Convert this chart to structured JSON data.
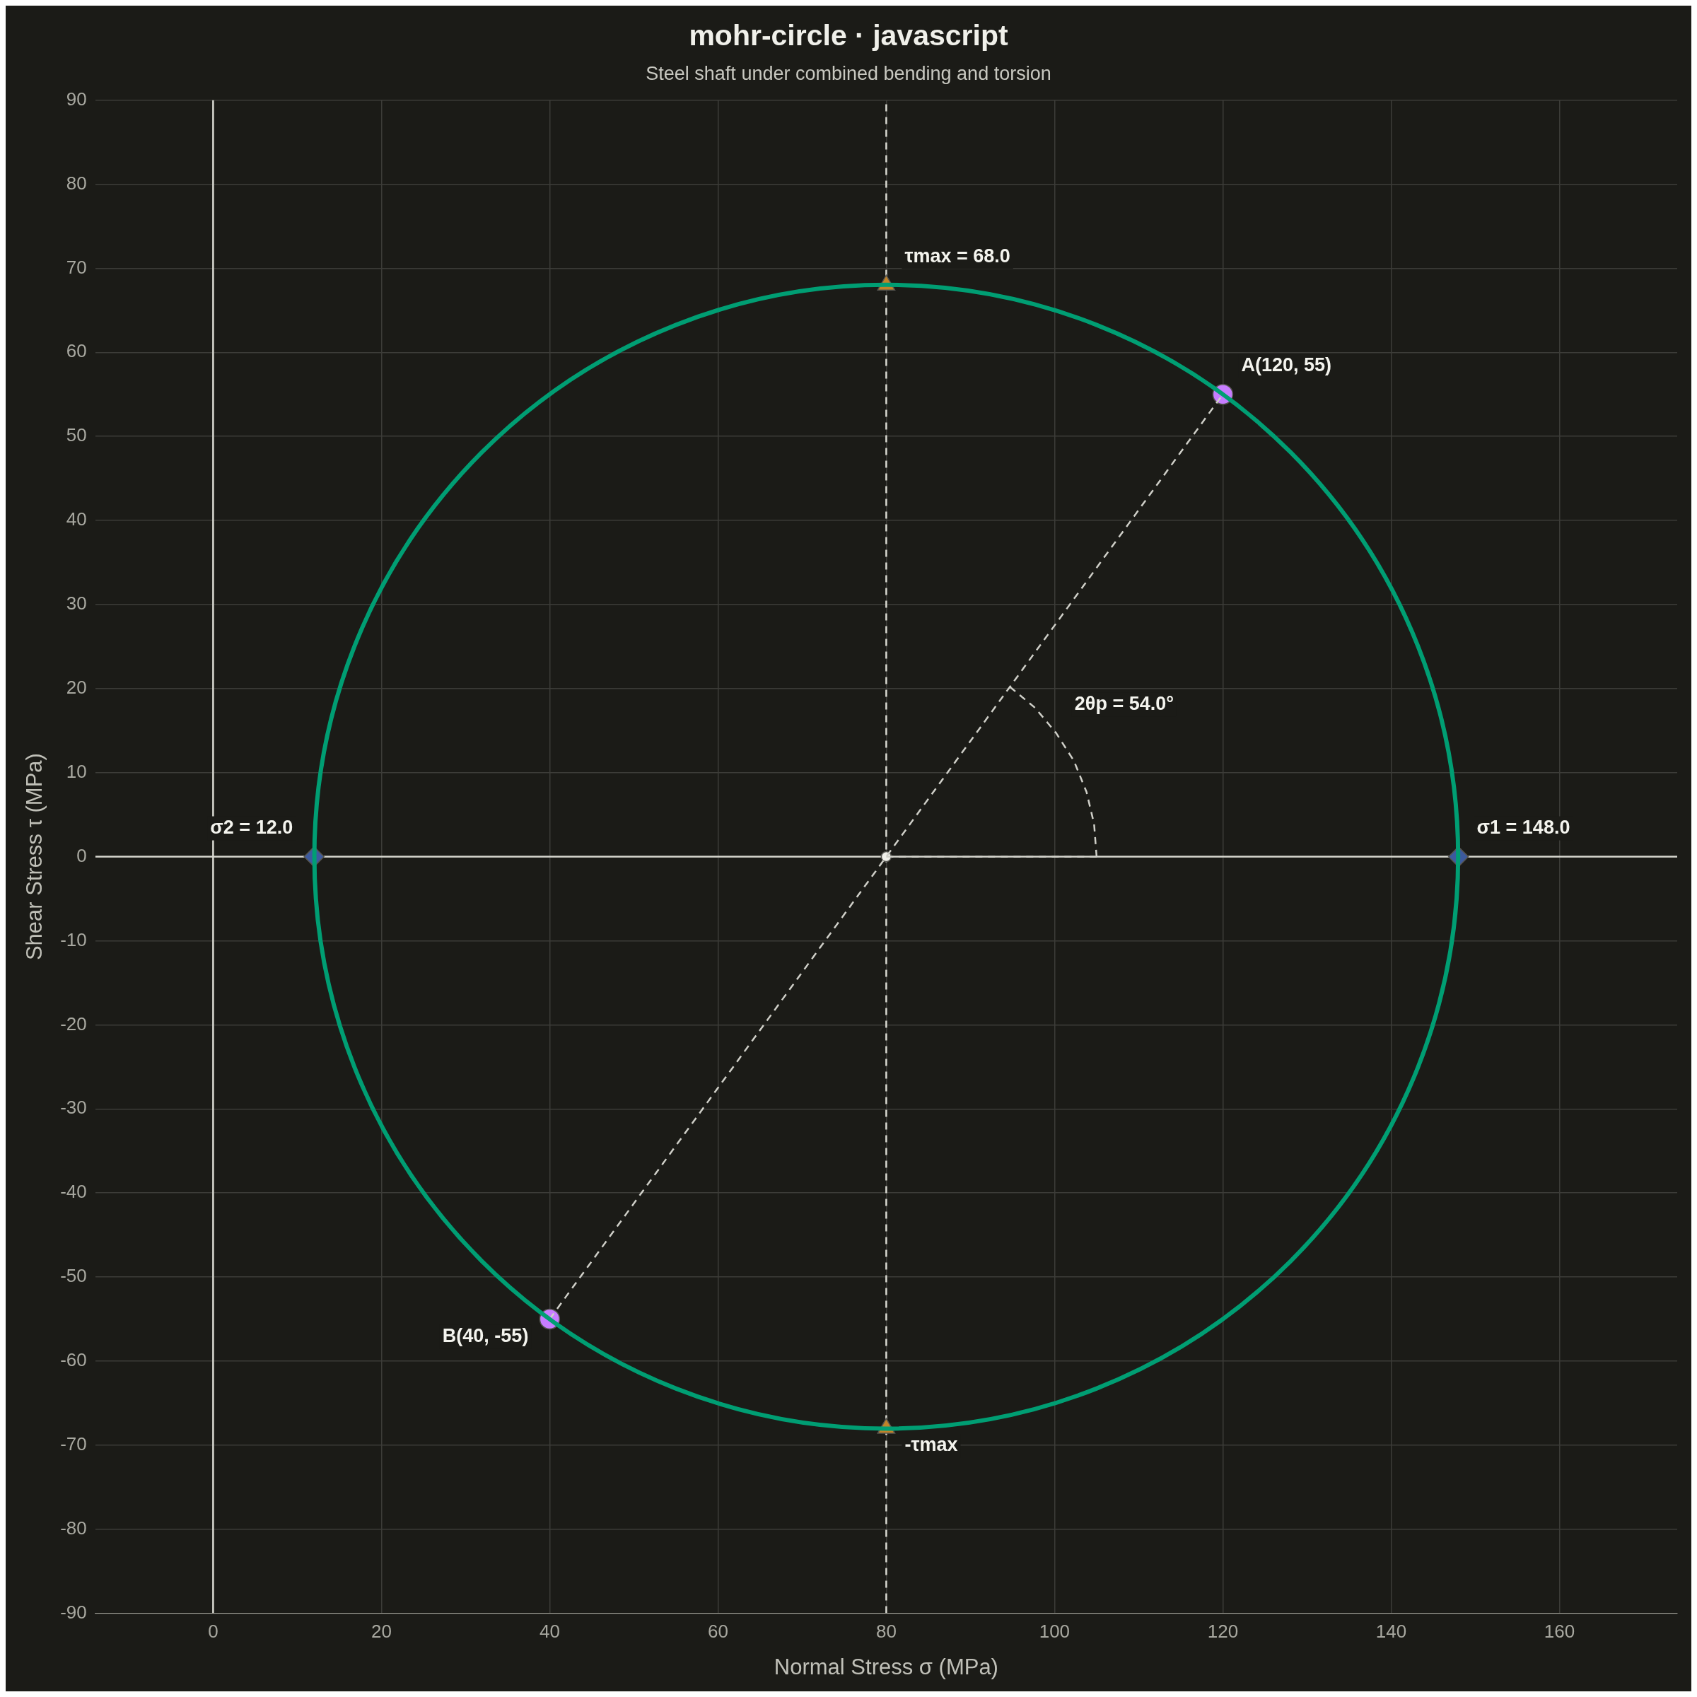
{
  "chart_data": {
    "type": "line",
    "title": "mohr-circle · javascript",
    "subtitle": "Steel shaft under combined bending and torsion",
    "xlabel": "Normal Stress σ (MPa)",
    "ylabel": "Shear Stress τ (MPa)",
    "xlim": [
      -14,
      174
    ],
    "xticks": [
      0,
      20,
      40,
      60,
      80,
      100,
      120,
      140,
      160
    ],
    "ylim": [
      -90,
      90
    ],
    "yticks": [
      -90,
      -80,
      -70,
      -60,
      -50,
      -40,
      -30,
      -20,
      -10,
      0,
      10,
      20,
      30,
      40,
      50,
      60,
      70,
      80,
      90
    ],
    "grid": true,
    "legend": false,
    "ref_lines": [
      {
        "axis": "x",
        "value": 80,
        "color": "#d8d8d0",
        "line_style": "dashed"
      },
      {
        "axis": "x",
        "value": 0,
        "color": "#d8d8d0",
        "line_style": "solid"
      },
      {
        "axis": "y",
        "value": 0,
        "color": "#d8d8d0",
        "line_style": "solid"
      }
    ],
    "series": [
      {
        "type": "line",
        "color": "#cfcfc8",
        "line_style": "dashed",
        "x": [
          40,
          120
        ],
        "values": [
          -55,
          55
        ]
      },
      {
        "type": "line",
        "color": "#cfcfc8",
        "line_style": "dashed",
        "x": [
          80,
          105
        ],
        "values": [
          0,
          0
        ]
      },
      {
        "type": "line",
        "color": "#cfcfc8",
        "line_style": "dashed",
        "x": [
          94.7,
          97.7,
          100.2,
          102.3,
          103.8,
          104.7,
          105
        ],
        "values": [
          20.2,
          17.7,
          14.7,
          11.4,
          7.7,
          3.9,
          0
        ]
      },
      {
        "type": "scatter",
        "color": "#c77dff",
        "marker": "circle",
        "x": [
          120,
          40
        ],
        "values": [
          55,
          -55
        ]
      },
      {
        "type": "scatter",
        "color": "#3d5a9e",
        "marker": "diamond",
        "x": [
          148,
          12
        ],
        "values": [
          0,
          0
        ]
      },
      {
        "type": "scatter",
        "color": "#c0832a",
        "marker": "triangle",
        "x": [
          80,
          80
        ],
        "values": [
          68,
          -68
        ]
      },
      {
        "type": "scatter",
        "color": "#f0f0ea",
        "marker": "circle",
        "x": [
          80
        ],
        "values": [
          0
        ]
      }
    ],
    "annotations": [
      {
        "text": "τmax = 68.0",
        "x": 80,
        "y": 68
      },
      {
        "text": "A(120, 55)",
        "x": 120,
        "y": 55
      },
      {
        "text": "σ1 = 148.0",
        "x": 148,
        "y": 0
      },
      {
        "text": "σ2 = 12.0",
        "x": 12,
        "y": 0
      },
      {
        "text": "B(40, -55)",
        "x": 40,
        "y": -55
      },
      {
        "text": "-τmax",
        "x": 80,
        "y": -68
      },
      {
        "text": "2θp = 54.0°",
        "x": 100.2,
        "y": 14.7
      }
    ]
  }
}
